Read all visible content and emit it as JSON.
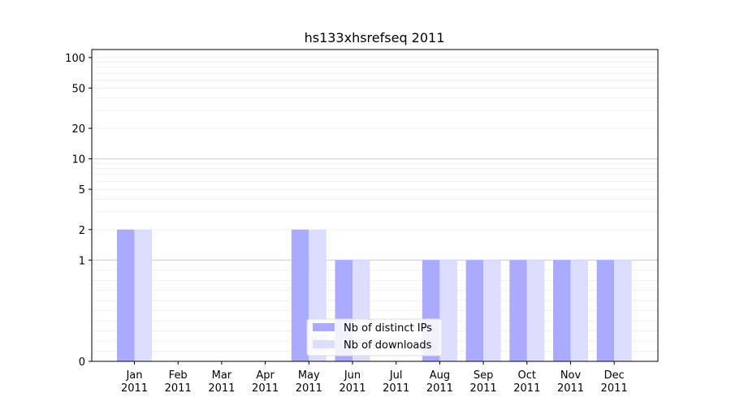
{
  "chart_data": {
    "type": "bar",
    "title": "hs133xhsrefseq 2011",
    "xlabel": "",
    "ylabel": "",
    "scale": "symlog",
    "ylim": [
      0,
      120
    ],
    "grid": true,
    "legend_position": "lower-center",
    "y_ticks": [
      0,
      1,
      2,
      5,
      10,
      20,
      50,
      100
    ],
    "y_tick_labels": [
      "0",
      "1",
      "2",
      "5",
      "10",
      "20",
      "50",
      "100"
    ],
    "categories": [
      "Jan\n2011",
      "Feb\n2011",
      "Mar\n2011",
      "Apr\n2011",
      "May\n2011",
      "Jun\n2011",
      "Jul\n2011",
      "Aug\n2011",
      "Sep\n2011",
      "Oct\n2011",
      "Nov\n2011",
      "Dec\n2011"
    ],
    "series": [
      {
        "name": "Nb of distinct IPs",
        "color": "#aaaaff",
        "values": [
          2,
          0,
          0,
          0,
          2,
          1,
          0,
          1,
          1,
          1,
          1,
          1
        ]
      },
      {
        "name": "Nb of downloads",
        "color": "#ddddff",
        "values": [
          2,
          0,
          0,
          0,
          2,
          1,
          0,
          1,
          1,
          1,
          1,
          1
        ]
      }
    ]
  }
}
